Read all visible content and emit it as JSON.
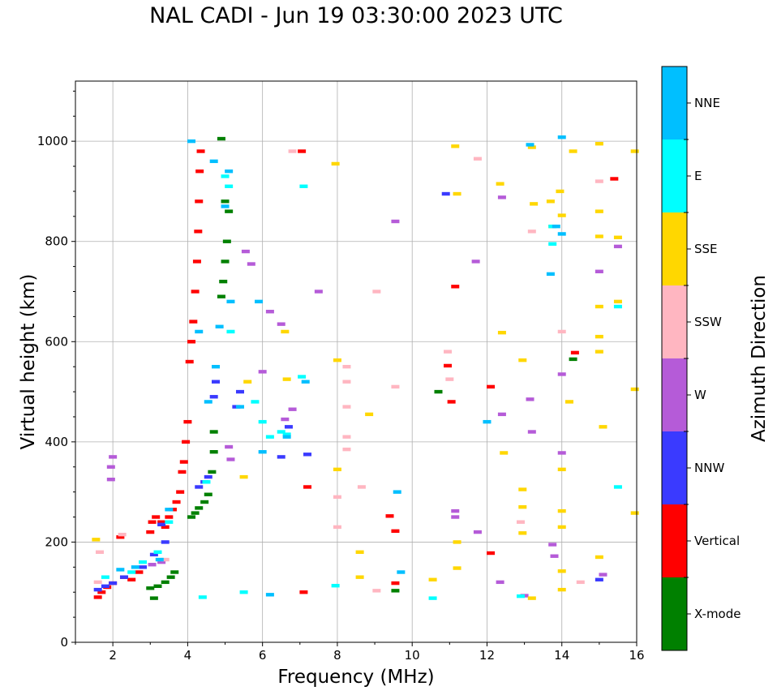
{
  "chart_data": {
    "type": "scatter",
    "title": "NAL CADI - Jun 19 03:30:00 2023 UTC",
    "xlabel": "Frequency (MHz)",
    "ylabel": "Virtual height (km)",
    "xlim": [
      1,
      16
    ],
    "ylim": [
      0,
      1120
    ],
    "xticks": [
      2,
      4,
      6,
      8,
      10,
      12,
      14,
      16
    ],
    "yticks": [
      0,
      200,
      400,
      600,
      800,
      1000
    ],
    "grid": true,
    "colorbar": {
      "label": "Azimuth Direction",
      "categories": [
        {
          "name": "X-mode",
          "color": "#008000"
        },
        {
          "name": "Vertical",
          "color": "#ff0000"
        },
        {
          "name": "NNW",
          "color": "#3a3aff"
        },
        {
          "name": "W",
          "color": "#b55bd8"
        },
        {
          "name": "SSW",
          "color": "#ffb6c1"
        },
        {
          "name": "SSE",
          "color": "#ffd700"
        },
        {
          "name": "E",
          "color": "#00ffff"
        },
        {
          "name": "NNE",
          "color": "#00bfff"
        }
      ]
    },
    "series": [
      {
        "name": "X-mode",
        "points": [
          [
            3.0,
            108
          ],
          [
            3.2,
            112
          ],
          [
            3.4,
            120
          ],
          [
            3.55,
            130
          ],
          [
            3.65,
            140
          ],
          [
            4.1,
            250
          ],
          [
            4.2,
            258
          ],
          [
            4.3,
            268
          ],
          [
            4.45,
            280
          ],
          [
            4.55,
            295
          ],
          [
            4.65,
            340
          ],
          [
            4.7,
            380
          ],
          [
            4.7,
            420
          ],
          [
            4.9,
            690
          ],
          [
            4.95,
            720
          ],
          [
            5.0,
            760
          ],
          [
            5.05,
            800
          ],
          [
            5.1,
            860
          ],
          [
            5.0,
            880
          ],
          [
            4.9,
            1005
          ],
          [
            10.7,
            500
          ],
          [
            14.3,
            565
          ],
          [
            9.55,
            103
          ],
          [
            3.1,
            88
          ]
        ]
      },
      {
        "name": "Vertical",
        "points": [
          [
            1.6,
            90
          ],
          [
            1.7,
            100
          ],
          [
            1.85,
            110
          ],
          [
            2.0,
            118
          ],
          [
            2.2,
            210
          ],
          [
            2.3,
            130
          ],
          [
            2.5,
            125
          ],
          [
            2.7,
            140
          ],
          [
            3.0,
            220
          ],
          [
            3.05,
            240
          ],
          [
            3.15,
            250
          ],
          [
            3.3,
            240
          ],
          [
            3.4,
            230
          ],
          [
            3.5,
            250
          ],
          [
            3.6,
            265
          ],
          [
            3.7,
            280
          ],
          [
            3.8,
            300
          ],
          [
            3.85,
            340
          ],
          [
            3.9,
            360
          ],
          [
            3.95,
            400
          ],
          [
            4.0,
            440
          ],
          [
            4.05,
            560
          ],
          [
            4.1,
            600
          ],
          [
            4.15,
            640
          ],
          [
            4.2,
            700
          ],
          [
            4.25,
            760
          ],
          [
            4.28,
            820
          ],
          [
            4.3,
            880
          ],
          [
            4.32,
            940
          ],
          [
            4.35,
            980
          ],
          [
            7.05,
            980
          ],
          [
            7.2,
            310
          ],
          [
            9.4,
            252
          ],
          [
            9.55,
            222
          ],
          [
            9.55,
            118
          ],
          [
            10.95,
            552
          ],
          [
            11.05,
            480
          ],
          [
            11.15,
            710
          ],
          [
            12.1,
            178
          ],
          [
            12.1,
            510
          ],
          [
            14.35,
            578
          ],
          [
            15.4,
            925
          ],
          [
            7.1,
            100
          ]
        ]
      },
      {
        "name": "NNW",
        "points": [
          [
            1.6,
            105
          ],
          [
            1.8,
            112
          ],
          [
            2.0,
            118
          ],
          [
            2.3,
            130
          ],
          [
            2.8,
            150
          ],
          [
            3.1,
            175
          ],
          [
            3.3,
            235
          ],
          [
            3.4,
            200
          ],
          [
            4.3,
            310
          ],
          [
            4.45,
            320
          ],
          [
            4.55,
            330
          ],
          [
            4.7,
            490
          ],
          [
            4.75,
            520
          ],
          [
            5.3,
            470
          ],
          [
            5.4,
            500
          ],
          [
            6.5,
            370
          ],
          [
            6.7,
            430
          ],
          [
            7.2,
            375
          ],
          [
            10.9,
            895
          ],
          [
            15.0,
            125
          ]
        ]
      },
      {
        "name": "W",
        "points": [
          [
            1.95,
            325
          ],
          [
            1.95,
            350
          ],
          [
            2.0,
            370
          ],
          [
            3.05,
            155
          ],
          [
            3.3,
            160
          ],
          [
            5.1,
            390
          ],
          [
            5.15,
            365
          ],
          [
            5.55,
            780
          ],
          [
            5.7,
            755
          ],
          [
            6.0,
            540
          ],
          [
            6.2,
            660
          ],
          [
            6.5,
            635
          ],
          [
            6.6,
            445
          ],
          [
            6.8,
            465
          ],
          [
            7.5,
            700
          ],
          [
            9.55,
            840
          ],
          [
            11.15,
            262
          ],
          [
            11.15,
            250
          ],
          [
            11.7,
            760
          ],
          [
            12.4,
            888
          ],
          [
            12.4,
            455
          ],
          [
            13.0,
            93
          ],
          [
            13.15,
            485
          ],
          [
            13.2,
            420
          ],
          [
            13.75,
            195
          ],
          [
            13.8,
            172
          ],
          [
            14.0,
            535
          ],
          [
            14.0,
            378
          ],
          [
            15.0,
            740
          ],
          [
            15.1,
            135
          ],
          [
            15.5,
            790
          ],
          [
            11.75,
            220
          ],
          [
            12.35,
            120
          ]
        ]
      },
      {
        "name": "SSW",
        "points": [
          [
            1.6,
            120
          ],
          [
            1.65,
            180
          ],
          [
            2.25,
            215
          ],
          [
            3.4,
            165
          ],
          [
            6.8,
            980
          ],
          [
            8.0,
            290
          ],
          [
            8.0,
            230
          ],
          [
            8.25,
            550
          ],
          [
            8.25,
            520
          ],
          [
            8.25,
            470
          ],
          [
            8.25,
            410
          ],
          [
            8.25,
            385
          ],
          [
            8.65,
            310
          ],
          [
            9.05,
            700
          ],
          [
            9.05,
            103
          ],
          [
            9.55,
            510
          ],
          [
            10.95,
            580
          ],
          [
            11.0,
            525
          ],
          [
            11.75,
            965
          ],
          [
            12.9,
            240
          ],
          [
            13.2,
            820
          ],
          [
            14.0,
            620
          ],
          [
            14.5,
            120
          ],
          [
            15.0,
            920
          ]
        ]
      },
      {
        "name": "SSE",
        "points": [
          [
            1.55,
            205
          ],
          [
            5.5,
            330
          ],
          [
            5.6,
            520
          ],
          [
            6.6,
            620
          ],
          [
            6.65,
            525
          ],
          [
            7.95,
            955
          ],
          [
            8.0,
            563
          ],
          [
            8.0,
            345
          ],
          [
            8.6,
            180
          ],
          [
            8.6,
            130
          ],
          [
            8.85,
            455
          ],
          [
            10.55,
            125
          ],
          [
            11.15,
            990
          ],
          [
            11.2,
            895
          ],
          [
            11.2,
            200
          ],
          [
            11.2,
            148
          ],
          [
            12.35,
            915
          ],
          [
            12.4,
            618
          ],
          [
            12.45,
            378
          ],
          [
            12.95,
            563
          ],
          [
            12.95,
            305
          ],
          [
            12.95,
            270
          ],
          [
            12.95,
            218
          ],
          [
            13.2,
            988
          ],
          [
            13.25,
            875
          ],
          [
            13.2,
            88
          ],
          [
            13.7,
            880
          ],
          [
            13.75,
            830
          ],
          [
            13.95,
            900
          ],
          [
            14.0,
            852
          ],
          [
            14.0,
            262
          ],
          [
            14.0,
            230
          ],
          [
            14.0,
            105
          ],
          [
            14.3,
            980
          ],
          [
            14.2,
            480
          ],
          [
            15.0,
            995
          ],
          [
            15.0,
            860
          ],
          [
            15.0,
            810
          ],
          [
            15.0,
            670
          ],
          [
            15.0,
            610
          ],
          [
            15.0,
            580
          ],
          [
            15.0,
            170
          ],
          [
            15.1,
            430
          ],
          [
            15.5,
            808
          ],
          [
            15.5,
            680
          ],
          [
            15.95,
            505
          ],
          [
            15.95,
            980
          ],
          [
            15.95,
            258
          ],
          [
            14.0,
            345
          ],
          [
            14.0,
            142
          ]
        ]
      },
      {
        "name": "E",
        "points": [
          [
            1.8,
            130
          ],
          [
            2.5,
            140
          ],
          [
            2.8,
            160
          ],
          [
            3.2,
            180
          ],
          [
            3.5,
            240
          ],
          [
            4.4,
            90
          ],
          [
            4.5,
            320
          ],
          [
            5.0,
            930
          ],
          [
            5.1,
            910
          ],
          [
            5.15,
            620
          ],
          [
            5.5,
            100
          ],
          [
            5.8,
            480
          ],
          [
            6.0,
            440
          ],
          [
            6.2,
            410
          ],
          [
            6.5,
            420
          ],
          [
            6.65,
            415
          ],
          [
            7.05,
            530
          ],
          [
            7.1,
            910
          ],
          [
            10.55,
            88
          ],
          [
            12.9,
            92
          ],
          [
            13.75,
            795
          ],
          [
            13.75,
            830
          ],
          [
            15.5,
            310
          ],
          [
            15.5,
            670
          ],
          [
            7.95,
            113
          ]
        ]
      },
      {
        "name": "NNE",
        "points": [
          [
            2.2,
            145
          ],
          [
            2.6,
            150
          ],
          [
            3.25,
            165
          ],
          [
            3.5,
            265
          ],
          [
            4.1,
            1000
          ],
          [
            4.3,
            620
          ],
          [
            4.55,
            480
          ],
          [
            4.7,
            960
          ],
          [
            4.75,
            550
          ],
          [
            4.85,
            630
          ],
          [
            5.0,
            870
          ],
          [
            5.1,
            940
          ],
          [
            5.15,
            680
          ],
          [
            5.4,
            470
          ],
          [
            5.9,
            680
          ],
          [
            6.0,
            380
          ],
          [
            6.2,
            95
          ],
          [
            6.65,
            410
          ],
          [
            7.15,
            520
          ],
          [
            9.6,
            300
          ],
          [
            9.7,
            140
          ],
          [
            12.0,
            440
          ],
          [
            13.15,
            993
          ],
          [
            13.85,
            830
          ],
          [
            13.7,
            735
          ],
          [
            14.0,
            1008
          ],
          [
            14.0,
            815
          ]
        ]
      }
    ]
  }
}
